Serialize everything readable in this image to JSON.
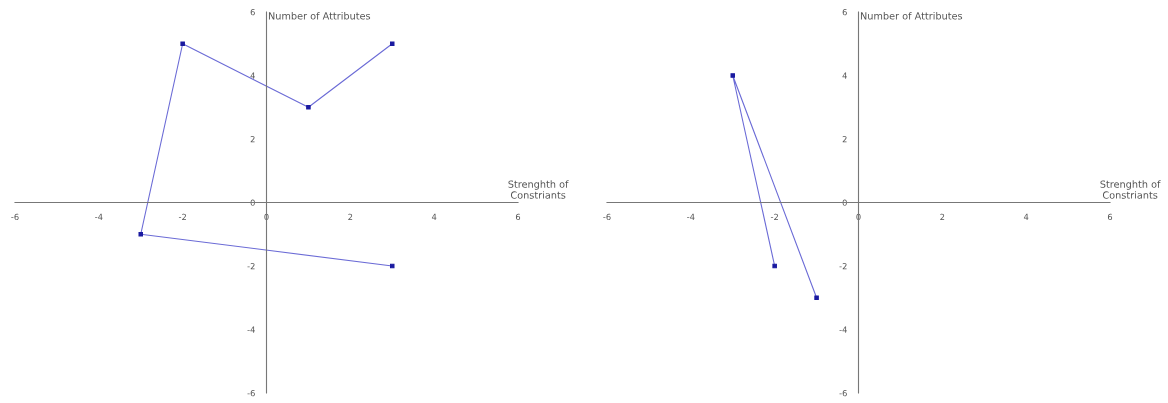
{
  "chart_data": [
    {
      "type": "line",
      "xlabel": "Strenghth of\nConstriants",
      "ylabel": "Number of Attributes",
      "xlim": [
        -6,
        6
      ],
      "ylim": [
        -6,
        6
      ],
      "xticks": [
        -6,
        -4,
        -2,
        0,
        2,
        4,
        6
      ],
      "yticks": [
        -6,
        -4,
        -2,
        0,
        2,
        4,
        6
      ],
      "grid": false,
      "legend": false,
      "marker": "square",
      "line_style": "solid",
      "series": [
        {
          "color": "#6b6bd6",
          "x": [
            3,
            -3,
            -2,
            1,
            3
          ],
          "values": [
            -2,
            -1,
            5,
            3,
            5
          ]
        }
      ]
    },
    {
      "type": "line",
      "xlabel": "Strenghth of\nConstriants",
      "ylabel": "Number of Attributes",
      "xlim": [
        -6,
        6
      ],
      "ylim": [
        -6,
        6
      ],
      "xticks": [
        -6,
        -4,
        -2,
        0,
        2,
        4,
        6
      ],
      "yticks": [
        -6,
        -4,
        -2,
        0,
        2,
        4,
        6
      ],
      "grid": false,
      "legend": false,
      "marker": "square",
      "line_style": "solid",
      "series": [
        {
          "color": "#6b6bd6",
          "x": [
            -2,
            -3,
            -1
          ],
          "values": [
            -2,
            4,
            -3
          ]
        }
      ]
    }
  ]
}
